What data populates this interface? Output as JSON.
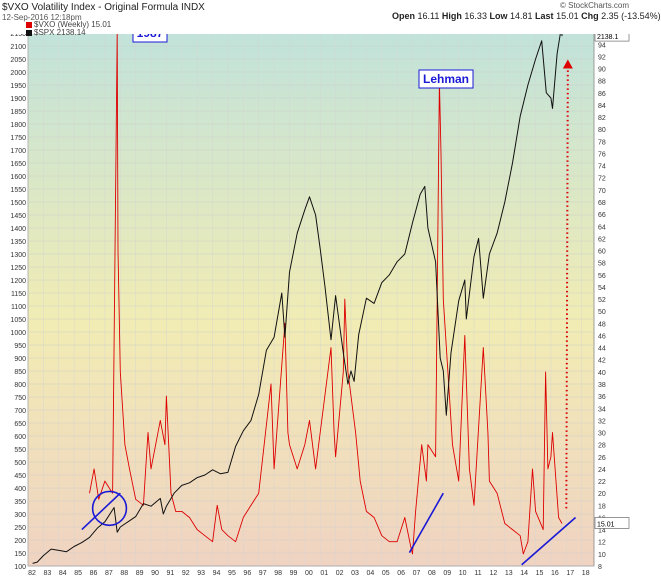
{
  "header": {
    "symbol_line": "$VXO Volatility Index - Original Formula INDX",
    "date_line": "12-Sep-2016 12:18pm",
    "open_label": "Open",
    "open": "16.11",
    "high_label": "High",
    "high": "16.33",
    "low_label": "Low",
    "low": "14.81",
    "last_label": "Last",
    "last": "15.01",
    "chg_label": "Chg",
    "chg": "2.35 (-13.54%)",
    "brand": "© StockCharts.com"
  },
  "legend": {
    "vxo": "$VXO (Weekly) 15.01",
    "spx": "$SPX 2138.14"
  },
  "annotations": {
    "crash_1987": "1987",
    "lehman": "Lehman"
  },
  "price_tags": {
    "spx_last": "2138.1",
    "vxo_last": "15.01"
  },
  "colors": {
    "vxo": "#dd0000",
    "spx": "#111111",
    "trendline": "#1a1ad6",
    "projection": "#dd0000",
    "annotation_box_border": "#1a1ad6",
    "annotation_box_fill": "#ffffff",
    "bg_top": "#bfe2dc",
    "bg_mid": "#f1ecb4",
    "bg_bottom": "#f0d3c2"
  },
  "chart_data": {
    "type": "line",
    "left_axis_label": "$SPX",
    "right_axis_label": "$VXO",
    "x_ticks": [
      "82",
      "83",
      "84",
      "85",
      "86",
      "87",
      "88",
      "89",
      "90",
      "91",
      "92",
      "93",
      "94",
      "95",
      "96",
      "97",
      "98",
      "99",
      "00",
      "01",
      "02",
      "03",
      "04",
      "05",
      "06",
      "07",
      "08",
      "09",
      "10",
      "11",
      "12",
      "13",
      "14",
      "15",
      "16",
      "17",
      "18"
    ],
    "x_range": [
      1982.0,
      2018.8
    ],
    "left_ylim": [
      100,
      2200
    ],
    "left_ticks": [
      100,
      150,
      200,
      250,
      300,
      350,
      400,
      450,
      500,
      550,
      600,
      650,
      700,
      750,
      800,
      850,
      900,
      950,
      1000,
      1050,
      1100,
      1150,
      1200,
      1250,
      1300,
      1350,
      1400,
      1450,
      1500,
      1550,
      1600,
      1650,
      1700,
      1750,
      1800,
      1850,
      1900,
      1950,
      2000,
      2050,
      2100,
      2150
    ],
    "right_ylim": [
      8,
      98
    ],
    "right_ticks": [
      8,
      10,
      12,
      14,
      16,
      18,
      20,
      22,
      24,
      26,
      28,
      30,
      32,
      34,
      36,
      38,
      40,
      42,
      44,
      46,
      48,
      50,
      52,
      54,
      56,
      58,
      60,
      62,
      64,
      66,
      68,
      70,
      72,
      74,
      76,
      78,
      80,
      82,
      84,
      86,
      88,
      90,
      92,
      94,
      96
    ],
    "series": [
      {
        "name": "$SPX",
        "axis": "left",
        "points": [
          [
            1982.3,
            110
          ],
          [
            1982.6,
            115
          ],
          [
            1983.0,
            140
          ],
          [
            1983.5,
            165
          ],
          [
            1984.0,
            160
          ],
          [
            1984.5,
            155
          ],
          [
            1985.0,
            175
          ],
          [
            1985.5,
            190
          ],
          [
            1986.0,
            210
          ],
          [
            1986.5,
            245
          ],
          [
            1987.0,
            270
          ],
          [
            1987.6,
            325
          ],
          [
            1987.8,
            230
          ],
          [
            1988.0,
            250
          ],
          [
            1988.5,
            270
          ],
          [
            1989.0,
            290
          ],
          [
            1989.5,
            340
          ],
          [
            1990.0,
            330
          ],
          [
            1990.6,
            360
          ],
          [
            1990.8,
            300
          ],
          [
            1991.0,
            330
          ],
          [
            1991.5,
            380
          ],
          [
            1992.0,
            410
          ],
          [
            1992.5,
            420
          ],
          [
            1993.0,
            440
          ],
          [
            1993.5,
            450
          ],
          [
            1994.0,
            470
          ],
          [
            1994.5,
            455
          ],
          [
            1995.0,
            460
          ],
          [
            1995.5,
            560
          ],
          [
            1996.0,
            620
          ],
          [
            1996.5,
            660
          ],
          [
            1997.0,
            760
          ],
          [
            1997.5,
            930
          ],
          [
            1998.0,
            980
          ],
          [
            1998.5,
            1150
          ],
          [
            1998.7,
            980
          ],
          [
            1999.0,
            1230
          ],
          [
            1999.5,
            1380
          ],
          [
            2000.0,
            1470
          ],
          [
            2000.3,
            1520
          ],
          [
            2000.7,
            1450
          ],
          [
            2001.0,
            1320
          ],
          [
            2001.3,
            1180
          ],
          [
            2001.7,
            970
          ],
          [
            2002.0,
            1140
          ],
          [
            2002.5,
            920
          ],
          [
            2002.8,
            800
          ],
          [
            2003.0,
            850
          ],
          [
            2003.2,
            810
          ],
          [
            2003.5,
            990
          ],
          [
            2004.0,
            1130
          ],
          [
            2004.5,
            1110
          ],
          [
            2005.0,
            1190
          ],
          [
            2005.5,
            1220
          ],
          [
            2006.0,
            1270
          ],
          [
            2006.5,
            1300
          ],
          [
            2007.0,
            1420
          ],
          [
            2007.5,
            1530
          ],
          [
            2007.8,
            1560
          ],
          [
            2008.0,
            1400
          ],
          [
            2008.5,
            1270
          ],
          [
            2008.8,
            900
          ],
          [
            2009.0,
            850
          ],
          [
            2009.2,
            680
          ],
          [
            2009.5,
            920
          ],
          [
            2010.0,
            1120
          ],
          [
            2010.4,
            1200
          ],
          [
            2010.5,
            1050
          ],
          [
            2011.0,
            1290
          ],
          [
            2011.3,
            1360
          ],
          [
            2011.6,
            1130
          ],
          [
            2012.0,
            1300
          ],
          [
            2012.5,
            1380
          ],
          [
            2013.0,
            1500
          ],
          [
            2013.5,
            1650
          ],
          [
            2014.0,
            1830
          ],
          [
            2014.5,
            1950
          ],
          [
            2015.0,
            2050
          ],
          [
            2015.4,
            2120
          ],
          [
            2015.7,
            1920
          ],
          [
            2016.0,
            1900
          ],
          [
            2016.1,
            1860
          ],
          [
            2016.4,
            2070
          ],
          [
            2016.7,
            2180
          ],
          [
            2016.72,
            2138
          ]
        ]
      },
      {
        "name": "$VXO",
        "axis": "right",
        "points": [
          [
            1986.0,
            20
          ],
          [
            1986.3,
            24
          ],
          [
            1986.6,
            19
          ],
          [
            1987.0,
            22
          ],
          [
            1987.5,
            20
          ],
          [
            1987.8,
            96
          ],
          [
            1987.85,
            60
          ],
          [
            1988.0,
            40
          ],
          [
            1988.3,
            28
          ],
          [
            1988.6,
            24
          ],
          [
            1989.0,
            19
          ],
          [
            1989.5,
            18
          ],
          [
            1989.8,
            30
          ],
          [
            1990.0,
            24
          ],
          [
            1990.6,
            32
          ],
          [
            1990.9,
            28
          ],
          [
            1991.0,
            36
          ],
          [
            1991.3,
            20
          ],
          [
            1991.6,
            17
          ],
          [
            1992.0,
            17
          ],
          [
            1992.5,
            16
          ],
          [
            1993.0,
            14
          ],
          [
            1993.5,
            13
          ],
          [
            1994.0,
            12
          ],
          [
            1994.3,
            18
          ],
          [
            1994.6,
            14
          ],
          [
            1995.0,
            13
          ],
          [
            1995.5,
            12
          ],
          [
            1996.0,
            16
          ],
          [
            1996.5,
            18
          ],
          [
            1997.0,
            20
          ],
          [
            1997.8,
            38
          ],
          [
            1998.0,
            24
          ],
          [
            1998.7,
            48
          ],
          [
            1998.9,
            30
          ],
          [
            1999.0,
            28
          ],
          [
            1999.5,
            24
          ],
          [
            2000.0,
            28
          ],
          [
            2000.3,
            32
          ],
          [
            2000.7,
            24
          ],
          [
            2001.0,
            30
          ],
          [
            2001.7,
            44
          ],
          [
            2001.9,
            30
          ],
          [
            2002.0,
            26
          ],
          [
            2002.5,
            40
          ],
          [
            2002.6,
            52
          ],
          [
            2002.8,
            40
          ],
          [
            2003.0,
            36
          ],
          [
            2003.3,
            30
          ],
          [
            2003.6,
            22
          ],
          [
            2004.0,
            17
          ],
          [
            2004.5,
            16
          ],
          [
            2005.0,
            13
          ],
          [
            2005.5,
            12
          ],
          [
            2006.0,
            12
          ],
          [
            2006.5,
            16
          ],
          [
            2006.9,
            11
          ],
          [
            2007.0,
            10
          ],
          [
            2007.2,
            17
          ],
          [
            2007.6,
            28
          ],
          [
            2007.9,
            22
          ],
          [
            2008.0,
            28
          ],
          [
            2008.5,
            26
          ],
          [
            2008.75,
            88
          ],
          [
            2008.85,
            76
          ],
          [
            2009.0,
            52
          ],
          [
            2009.3,
            40
          ],
          [
            2009.6,
            28
          ],
          [
            2010.0,
            22
          ],
          [
            2010.4,
            46
          ],
          [
            2010.7,
            24
          ],
          [
            2011.0,
            18
          ],
          [
            2011.6,
            44
          ],
          [
            2011.9,
            30
          ],
          [
            2012.0,
            22
          ],
          [
            2012.5,
            20
          ],
          [
            2013.0,
            15
          ],
          [
            2013.5,
            14
          ],
          [
            2014.0,
            13
          ],
          [
            2014.2,
            10
          ],
          [
            2014.5,
            12
          ],
          [
            2014.8,
            24
          ],
          [
            2015.0,
            17
          ],
          [
            2015.5,
            14
          ],
          [
            2015.65,
            40
          ],
          [
            2015.8,
            24
          ],
          [
            2016.0,
            26
          ],
          [
            2016.1,
            30
          ],
          [
            2016.5,
            16
          ],
          [
            2016.72,
            15.01
          ]
        ]
      }
    ],
    "trendlines": [
      {
        "from": [
          1985.5,
          14
        ],
        "to": [
          1988.0,
          20
        ]
      },
      {
        "from": [
          2006.8,
          10.2
        ],
        "to": [
          2009.0,
          20
        ]
      },
      {
        "from": [
          2014.1,
          8.2
        ],
        "to": [
          2017.6,
          16
        ]
      }
    ],
    "projection": {
      "from": [
        2017.0,
        17.5
      ],
      "to": [
        2017.1,
        91
      ]
    },
    "circle_marker": {
      "center": [
        1987.3,
        17.5
      ],
      "radius_years": 1.1
    }
  }
}
